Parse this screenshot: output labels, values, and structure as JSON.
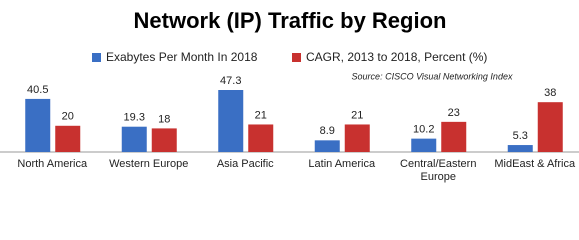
{
  "chart_data": {
    "type": "bar",
    "title": "Network (IP) Traffic by Region",
    "annotation": "Source: CISCO Visual Networking Index",
    "categories": [
      "North America",
      "Western Europe",
      "Asia Pacific",
      "Latin America",
      "Central/Eastern Europe",
      "MidEast & Africa"
    ],
    "series": [
      {
        "name": "Exabytes Per Month In 2018",
        "color": "#3a6fc4",
        "values": [
          40.5,
          19.3,
          47.3,
          8.9,
          10.2,
          5.3
        ]
      },
      {
        "name": "CAGR, 2013 to 2018, Percent (%)",
        "color": "#c8312f",
        "values": [
          20,
          18,
          21,
          21,
          23,
          38
        ]
      }
    ]
  }
}
